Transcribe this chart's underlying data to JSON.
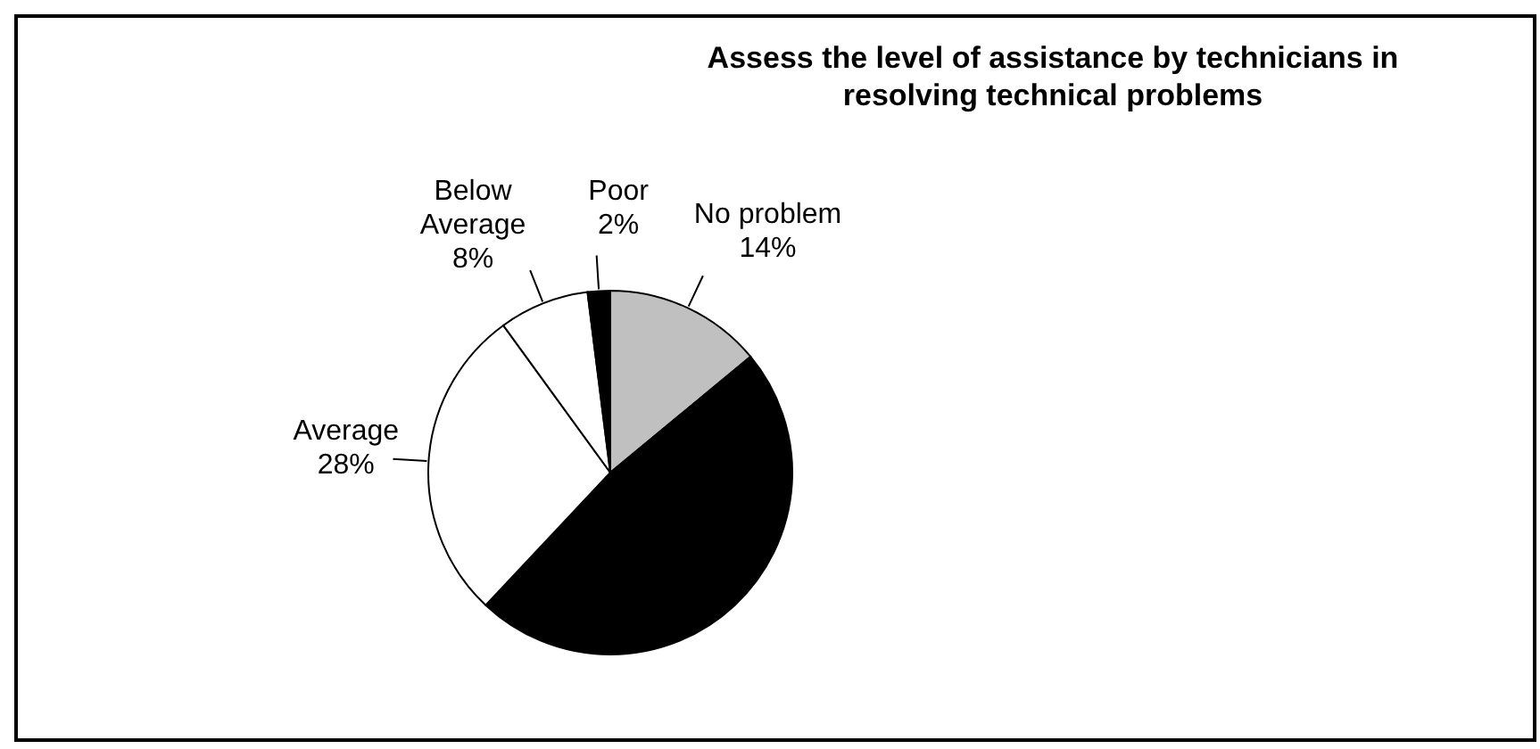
{
  "chart_data": {
    "type": "pie",
    "title": "Assess the level of assistance by technicians in resolving technical problems",
    "categories": [
      "No problem",
      null,
      "Average",
      "Below Average",
      "Poor"
    ],
    "values": [
      14,
      48,
      28,
      8,
      2
    ],
    "value_labels": [
      "14%",
      null,
      "28%",
      "8%",
      "2%"
    ],
    "colors": [
      "#c0c0c0",
      "#000000",
      "#ffffff",
      "#ffffff",
      "#000000"
    ]
  }
}
